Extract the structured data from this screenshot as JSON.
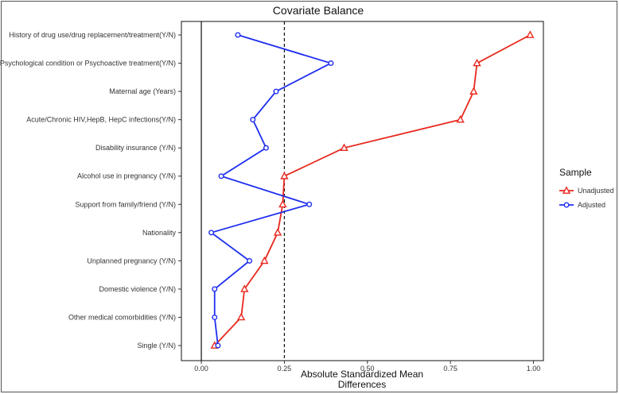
{
  "chart_data": {
    "type": "line",
    "title": "Covariate Balance",
    "xlabel_line1": "Absolute Standardized Mean",
    "xlabel_line2": "Differences",
    "ylabel": "",
    "xlim": [
      -0.06,
      1.03
    ],
    "x_ticks": [
      "0.00",
      "0.25",
      "0.50",
      "0.75",
      "1.00"
    ],
    "x_tick_values": [
      0,
      0.25,
      0.5,
      0.75,
      1.0
    ],
    "threshold": 0.25,
    "reference_line": 0,
    "grid": false,
    "legend_position": "right",
    "legend_title": "Sample",
    "categories": [
      "History of drug use/drug replacement/treatment(Y/N)",
      "Psychological condition or Psychoactive treatment(Y/N)",
      "Maternal age (Years)",
      "Acute/Chronic HIV,HepB, HepC infections(Y/N)",
      "Disability insurance (Y/N)",
      "Alcohol use in pregnancy (Y/N)",
      "Support from family/friend (Y/N)",
      "Nationality",
      "Unplanned pregnancy (Y/N)",
      "Domestic violence (Y/N)",
      "Other medical comorbidities (Y/N)",
      "Single (Y/N)"
    ],
    "series": [
      {
        "name": "Unadjusted",
        "color": "#e8281e",
        "marker": "triangle",
        "values": [
          0.99,
          0.83,
          0.82,
          0.78,
          0.43,
          0.25,
          0.245,
          0.23,
          0.19,
          0.13,
          0.12,
          0.04
        ]
      },
      {
        "name": "Adjusted",
        "color": "#1f2ff0",
        "marker": "circle",
        "values": [
          0.11,
          0.39,
          0.225,
          0.155,
          0.195,
          0.06,
          0.325,
          0.03,
          0.145,
          0.04,
          0.04,
          0.05
        ]
      }
    ]
  }
}
